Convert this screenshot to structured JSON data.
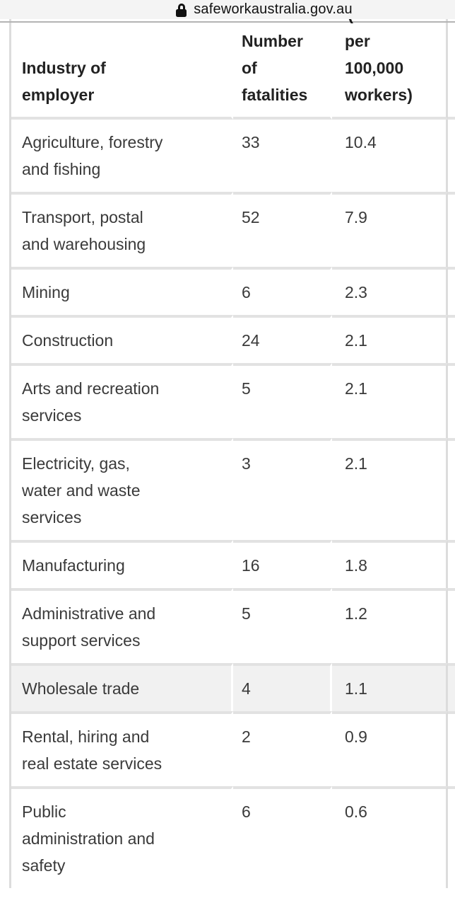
{
  "browser": {
    "url": "safeworkaustralia.gov.au"
  },
  "table": {
    "header_clipped_fragment": "(",
    "columns": [
      {
        "id": "industry",
        "label": "Industry of employer",
        "lines": [
          "Industry of",
          "employer"
        ]
      },
      {
        "id": "fatalities",
        "label": "Number of fatalities",
        "lines": [
          "Number",
          "of",
          "fatalities"
        ]
      },
      {
        "id": "rate",
        "label": "per 100,000 workers)",
        "lines": [
          "per",
          "100,000",
          "workers)"
        ]
      }
    ],
    "rows": [
      {
        "industry_lines": [
          "Agriculture, forestry",
          "and fishing"
        ],
        "fatalities": "33",
        "rate": "10.4",
        "highlighted": false
      },
      {
        "industry_lines": [
          "Transport, postal",
          "and warehousing"
        ],
        "fatalities": "52",
        "rate": "7.9",
        "highlighted": false
      },
      {
        "industry_lines": [
          "Mining"
        ],
        "fatalities": "6",
        "rate": "2.3",
        "highlighted": false
      },
      {
        "industry_lines": [
          "Construction"
        ],
        "fatalities": "24",
        "rate": "2.1",
        "highlighted": false
      },
      {
        "industry_lines": [
          "Arts and recreation",
          "services"
        ],
        "fatalities": "5",
        "rate": "2.1",
        "highlighted": false
      },
      {
        "industry_lines": [
          "Electricity, gas,",
          "water and waste",
          "services"
        ],
        "fatalities": "3",
        "rate": "2.1",
        "highlighted": false
      },
      {
        "industry_lines": [
          "Manufacturing"
        ],
        "fatalities": "16",
        "rate": "1.8",
        "highlighted": false
      },
      {
        "industry_lines": [
          "Administrative and",
          "support services"
        ],
        "fatalities": "5",
        "rate": "1.2",
        "highlighted": false
      },
      {
        "industry_lines": [
          "Wholesale trade"
        ],
        "fatalities": "4",
        "rate": "1.1",
        "highlighted": true
      },
      {
        "industry_lines": [
          "Rental, hiring and",
          "real estate services"
        ],
        "fatalities": "2",
        "rate": "0.9",
        "highlighted": false
      },
      {
        "industry_lines": [
          "Public",
          "administration and",
          "safety"
        ],
        "fatalities": "6",
        "rate": "0.6",
        "highlighted": false
      }
    ]
  },
  "colors": {
    "urlbar_bg": "#f4f4f4",
    "hairline": "#b4b4b4",
    "row_divider": "#e2e2e2",
    "vertical_border": "#dcdcdc",
    "highlight_row_bg": "#f1f1f1",
    "text": "#3a3a3a"
  }
}
